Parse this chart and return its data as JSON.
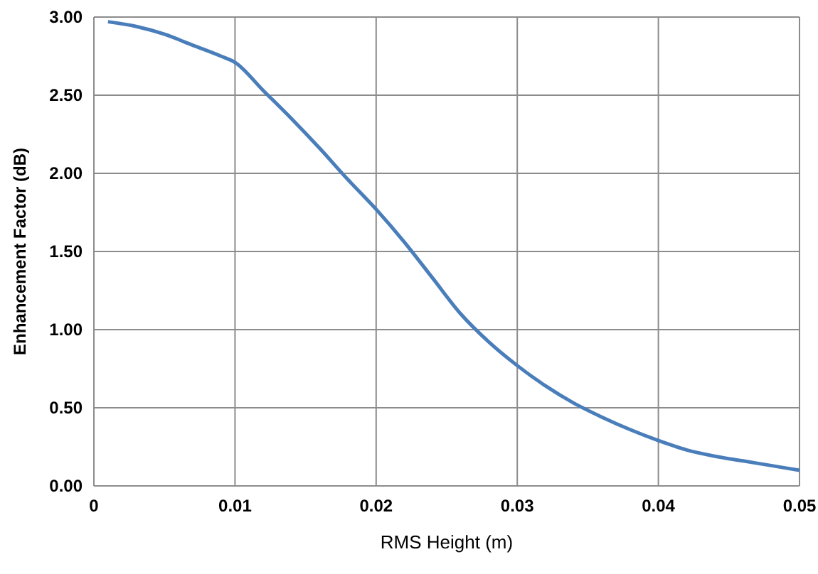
{
  "chart_data": {
    "type": "line",
    "xlabel": "RMS Height (m)",
    "ylabel": "Enhancement Factor (dB)",
    "x": [
      0.001,
      0.003,
      0.005,
      0.007,
      0.009,
      0.01,
      0.012,
      0.014,
      0.016,
      0.018,
      0.02,
      0.022,
      0.024,
      0.026,
      0.028,
      0.03,
      0.032,
      0.034,
      0.036,
      0.038,
      0.04,
      0.042,
      0.044,
      0.046,
      0.048,
      0.05
    ],
    "series": [
      {
        "color": "#4a7ebb",
        "values": [
          2.97,
          2.94,
          2.89,
          2.82,
          2.75,
          2.71,
          2.53,
          2.35,
          2.16,
          1.96,
          1.77,
          1.56,
          1.33,
          1.1,
          0.92,
          0.77,
          0.64,
          0.53,
          0.44,
          0.36,
          0.29,
          0.23,
          0.19,
          0.16,
          0.13,
          0.1
        ]
      }
    ],
    "xlim": [
      0,
      0.05
    ],
    "xticks": [
      {
        "value": 0,
        "label": "0"
      },
      0.01,
      0.02,
      0.03,
      0.04,
      0.05
    ],
    "ylim": [
      0,
      3
    ],
    "yticks": [
      {
        "value": 0,
        "label": "0.00"
      },
      {
        "value": 0.5,
        "label": "0.50"
      },
      {
        "value": 1,
        "label": "1.00"
      },
      {
        "value": 1.5,
        "label": "1.50"
      },
      {
        "value": 2,
        "label": "2.00"
      },
      {
        "value": 2.5,
        "label": "2.50"
      },
      {
        "value": 3,
        "label": "3.00"
      }
    ],
    "grid": true,
    "marker": "none",
    "line_style": "solid"
  }
}
